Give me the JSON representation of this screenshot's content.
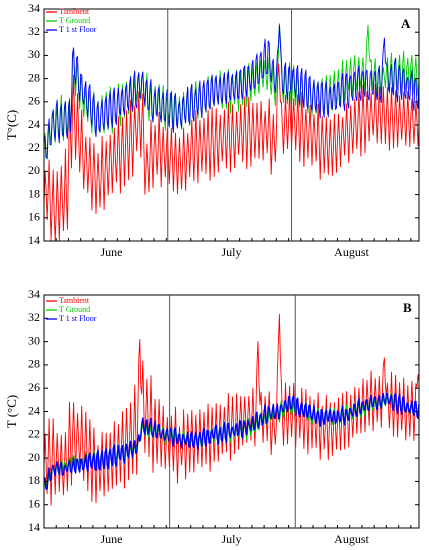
{
  "chart_data": [
    {
      "type": "line",
      "panel_label": "A",
      "ylabel": "T°(C)",
      "ylim": [
        14,
        34
      ],
      "yticks": [
        14,
        16,
        18,
        20,
        22,
        24,
        26,
        28,
        30,
        32,
        34
      ],
      "month_labels": [
        "June",
        "July",
        "August"
      ],
      "month_boundaries_fraction": [
        0.33,
        0.66
      ],
      "legend": [
        {
          "name": "Tambient",
          "color": "#ff0000"
        },
        {
          "name": "T Ground",
          "color": "#00cc00"
        },
        {
          "name": "T 1 st Floor",
          "color": "#0000ff"
        }
      ],
      "series": [
        {
          "name": "Tambient",
          "color": "#ff0000",
          "keypoints": [
            [
              0,
              17.2
            ],
            [
              0.5,
              18.5
            ],
            [
              2.5,
              16.5
            ],
            [
              5.5,
              18.0
            ],
            [
              7,
              25.5
            ],
            [
              10,
              21.0
            ],
            [
              13,
              19.0
            ],
            [
              17,
              21.0
            ],
            [
              21,
              22.5
            ],
            [
              24,
              24.5
            ],
            [
              25,
              20.0
            ],
            [
              27,
              22.0
            ],
            [
              30,
              21.5
            ],
            [
              33,
              20.5
            ],
            [
              37,
              22.0
            ],
            [
              42,
              22.5
            ],
            [
              50,
              23.5
            ],
            [
              55,
              23.5
            ],
            [
              56,
              22.5
            ],
            [
              60,
              24.5
            ],
            [
              66,
              23.0
            ],
            [
              70,
              22.0
            ],
            [
              75,
              23.5
            ],
            [
              80,
              25.0
            ],
            [
              86,
              24.5
            ],
            [
              90,
              24.5
            ],
            [
              92,
              24.0
            ]
          ],
          "amplitude": [
            [
              0,
              2.8
            ],
            [
              6,
              3.5
            ],
            [
              10,
              2.8
            ],
            [
              30,
              2.7
            ],
            [
              50,
              2.5
            ],
            [
              60,
              2.3
            ],
            [
              70,
              2.5
            ],
            [
              92,
              2.2
            ]
          ]
        },
        {
          "name": "T Ground",
          "color": "#00cc00",
          "keypoints": [
            [
              0,
              21.5
            ],
            [
              2,
              24.0
            ],
            [
              5,
              24.5
            ],
            [
              6.5,
              24.5
            ],
            [
              7,
              29.0
            ],
            [
              10,
              26.0
            ],
            [
              13,
              24.5
            ],
            [
              17,
              25.5
            ],
            [
              21,
              26.5
            ],
            [
              24,
              27.5
            ],
            [
              26,
              26.0
            ],
            [
              30,
              25.5
            ],
            [
              33,
              25.0
            ],
            [
              37,
              26.0
            ],
            [
              42,
              27.0
            ],
            [
              48,
              27.0
            ],
            [
              52,
              28.0
            ],
            [
              55,
              28.5
            ],
            [
              57,
              27.0
            ],
            [
              60,
              27.5
            ],
            [
              66,
              26.5
            ],
            [
              70,
              26.5
            ],
            [
              74,
              28.0
            ],
            [
              78,
              28.5
            ],
            [
              82,
              28.0
            ],
            [
              86,
              28.5
            ],
            [
              90,
              28.5
            ],
            [
              92,
              28.0
            ]
          ],
          "amplitude": [
            [
              0,
              1.7
            ],
            [
              30,
              1.6
            ],
            [
              60,
              1.5
            ],
            [
              92,
              1.5
            ]
          ]
        },
        {
          "name": "T 1 st Floor",
          "color": "#0000ff",
          "keypoints": [
            [
              0,
              21.5
            ],
            [
              2,
              24.0
            ],
            [
              5,
              24.5
            ],
            [
              6.5,
              24.5
            ],
            [
              7,
              29.5
            ],
            [
              10,
              26.5
            ],
            [
              13,
              24.5
            ],
            [
              17,
              25.5
            ],
            [
              21,
              26.5
            ],
            [
              24,
              27.5
            ],
            [
              26,
              26.0
            ],
            [
              30,
              25.5
            ],
            [
              33,
              25.0
            ],
            [
              37,
              26.0
            ],
            [
              42,
              27.0
            ],
            [
              48,
              27.5
            ],
            [
              52,
              28.5
            ],
            [
              55,
              30.0
            ],
            [
              57,
              27.5
            ],
            [
              60,
              28.0
            ],
            [
              66,
              26.5
            ],
            [
              70,
              26.0
            ],
            [
              74,
              27.0
            ],
            [
              78,
              27.5
            ],
            [
              82,
              27.5
            ],
            [
              86,
              28.0
            ],
            [
              90,
              27.0
            ],
            [
              92,
              26.5
            ]
          ],
          "amplitude": [
            [
              0,
              1.8
            ],
            [
              30,
              1.7
            ],
            [
              60,
              1.6
            ],
            [
              92,
              1.6
            ]
          ]
        }
      ]
    },
    {
      "type": "line",
      "panel_label": "B",
      "ylabel": "T (°C)",
      "ylim": [
        14,
        34
      ],
      "yticks": [
        14,
        16,
        18,
        20,
        22,
        24,
        26,
        28,
        30,
        32,
        34
      ],
      "month_labels": [
        "June",
        "July",
        "August"
      ],
      "month_boundaries_fraction": [
        0.335,
        0.67
      ],
      "legend": [
        {
          "name": "Tambient",
          "color": "#ff0000"
        },
        {
          "name": "T Ground",
          "color": "#00cc00"
        },
        {
          "name": "T 1 st Floor",
          "color": "#0000ff"
        }
      ],
      "series": [
        {
          "name": "Tambient",
          "color": "#ff0000",
          "keypoints": [
            [
              0,
              19.5
            ],
            [
              2.5,
              20.0
            ],
            [
              5,
              19.0
            ],
            [
              7,
              22.0
            ],
            [
              10,
              21.0
            ],
            [
              13,
              19.0
            ],
            [
              17,
              20.0
            ],
            [
              21,
              21.5
            ],
            [
              23,
              22.5
            ],
            [
              24,
              24.5
            ],
            [
              25,
              24.0
            ],
            [
              27,
              22.5
            ],
            [
              30,
              21.5
            ],
            [
              33,
              21.0
            ],
            [
              37,
              21.5
            ],
            [
              42,
              22.0
            ],
            [
              50,
              23.5
            ],
            [
              55,
              23.5
            ],
            [
              56,
              22.5
            ],
            [
              60,
              24.0
            ],
            [
              66,
              23.0
            ],
            [
              70,
              22.5
            ],
            [
              75,
              23.5
            ],
            [
              80,
              25.0
            ],
            [
              86,
              24.5
            ],
            [
              90,
              24.0
            ],
            [
              92,
              24.5
            ]
          ],
          "amplitude": [
            [
              0,
              3.2
            ],
            [
              20,
              2.8
            ],
            [
              24,
              3.5
            ],
            [
              30,
              2.6
            ],
            [
              50,
              2.3
            ],
            [
              60,
              2.2
            ],
            [
              70,
              2.3
            ],
            [
              92,
              2.2
            ]
          ]
        },
        {
          "name": "T Ground",
          "color": "#00cc00",
          "keypoints": [
            [
              0,
              17.5
            ],
            [
              2,
              19.0
            ],
            [
              8,
              19.5
            ],
            [
              14,
              20.0
            ],
            [
              20,
              20.5
            ],
            [
              23,
              21.0
            ],
            [
              24,
              22.5
            ],
            [
              30,
              22.0
            ],
            [
              36,
              21.5
            ],
            [
              42,
              22.0
            ],
            [
              50,
              22.5
            ],
            [
              55,
              23.5
            ],
            [
              58,
              24.0
            ],
            [
              60,
              24.5
            ],
            [
              64,
              24.0
            ],
            [
              68,
              23.5
            ],
            [
              72,
              23.5
            ],
            [
              76,
              24.0
            ],
            [
              80,
              24.5
            ],
            [
              84,
              25.0
            ],
            [
              88,
              24.5
            ],
            [
              92,
              24.0
            ]
          ],
          "amplitude": [
            [
              0,
              0.5
            ],
            [
              30,
              0.5
            ],
            [
              60,
              0.6
            ],
            [
              92,
              0.5
            ]
          ]
        },
        {
          "name": "T 1 st Floor",
          "color": "#0000ff",
          "keypoints": [
            [
              0,
              17.5
            ],
            [
              2,
              19.0
            ],
            [
              8,
              19.3
            ],
            [
              14,
              19.8
            ],
            [
              20,
              20.5
            ],
            [
              23,
              21.0
            ],
            [
              24,
              22.8
            ],
            [
              30,
              22.0
            ],
            [
              36,
              21.5
            ],
            [
              42,
              22.0
            ],
            [
              50,
              22.7
            ],
            [
              55,
              23.8
            ],
            [
              58,
              24.0
            ],
            [
              60,
              24.8
            ],
            [
              64,
              24.0
            ],
            [
              68,
              23.5
            ],
            [
              72,
              23.5
            ],
            [
              76,
              24.0
            ],
            [
              80,
              24.7
            ],
            [
              84,
              25.0
            ],
            [
              88,
              24.5
            ],
            [
              92,
              24.0
            ]
          ],
          "amplitude": [
            [
              0,
              0.7
            ],
            [
              30,
              0.7
            ],
            [
              60,
              0.7
            ],
            [
              92,
              0.7
            ]
          ]
        }
      ],
      "spikes": [
        {
          "series": "Tambient",
          "x": 23.5,
          "y": 30.2
        },
        {
          "series": "Tambient",
          "x": 52.5,
          "y": 30.0
        },
        {
          "series": "Tambient",
          "x": 57.7,
          "y": 33.4
        },
        {
          "series": "Tambient",
          "x": 83.5,
          "y": 28.6
        },
        {
          "series": "Tambient",
          "x": 91.8,
          "y": 27.6
        }
      ]
    }
  ],
  "panelA_spikes": [
    {
      "series": "T 1 st Floor",
      "x": 57.7,
      "y": 33.2
    },
    {
      "series": "T Ground",
      "x": 57.8,
      "y": 33.4
    },
    {
      "series": "Tambient",
      "x": 57.6,
      "y": 30.5
    },
    {
      "series": "T Ground",
      "x": 79.5,
      "y": 32.6
    },
    {
      "series": "T 1 st Floor",
      "x": 83.5,
      "y": 31.5
    }
  ]
}
